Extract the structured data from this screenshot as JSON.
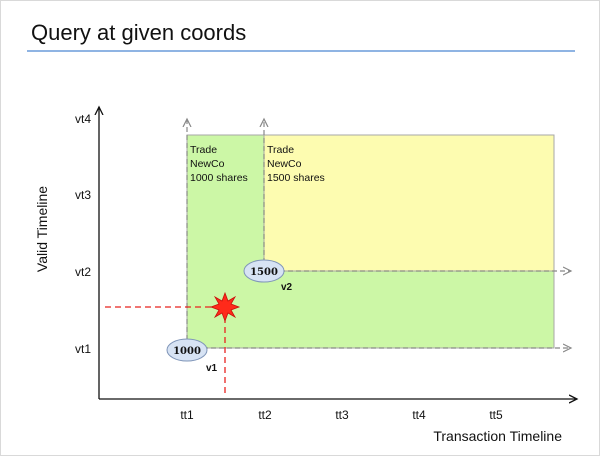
{
  "slide": {
    "title": "Query at given coords"
  },
  "axes": {
    "x_title": "Transaction Timeline",
    "y_title": "Valid Timeline",
    "x_ticks": [
      "tt1",
      "tt2",
      "tt3",
      "tt4",
      "tt5"
    ],
    "y_ticks": [
      "vt1",
      "vt2",
      "vt3",
      "vt4"
    ]
  },
  "records": [
    {
      "lines": [
        "Trade",
        "NewCo",
        "1000 shares"
      ],
      "badge": "1000",
      "version": "v1",
      "color": "#ccf7a6"
    },
    {
      "lines": [
        "Trade",
        "NewCo",
        "1500 shares"
      ],
      "badge": "1500",
      "version": "v2",
      "color": "#fdfcb0"
    }
  ],
  "colors": {
    "green_fill": "#ccf7a6",
    "yellow_fill": "#fdfcb0",
    "query_line": "#e8231f",
    "query_marker": "#ff2a1a",
    "badge_fill": "#d7e3f4",
    "title_rule": "#8fb4e3"
  },
  "icons": {
    "query_marker": "star-burst-icon"
  }
}
